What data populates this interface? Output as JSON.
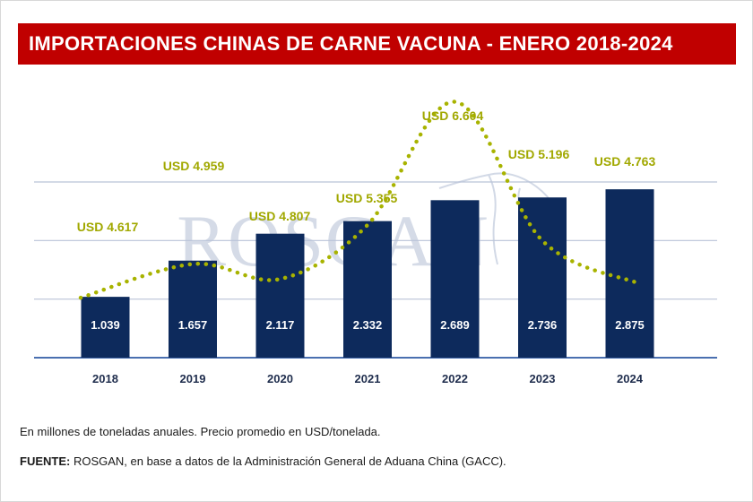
{
  "header": {
    "title": "IMPORTACIONES CHINAS DE CARNE VACUNA - ENERO 2018-2024"
  },
  "watermark": {
    "text": "ROSGAN"
  },
  "colors": {
    "bar": "#0d2a5c",
    "line": "#a8b300",
    "title_bg": "#c00000",
    "watermark": "#c8d0e0"
  },
  "chart_data": {
    "type": "bar",
    "title": "IMPORTACIONES CHINAS DE CARNE VACUNA - ENERO 2018-2024",
    "categories": [
      "2018",
      "2019",
      "2020",
      "2021",
      "2022",
      "2023",
      "2024"
    ],
    "series": [
      {
        "type": "bar",
        "values": [
          1.039,
          1.657,
          2.117,
          2.332,
          2.689,
          2.736,
          2.875
        ],
        "labels": [
          "1.039",
          "1.657",
          "2.117",
          "2.332",
          "2.689",
          "2.736",
          "2.875"
        ]
      },
      {
        "type": "line",
        "style": "dotted",
        "values": [
          4617,
          4959,
          4807,
          5355,
          6604,
          5196,
          4763
        ],
        "labels": [
          "USD 4.617",
          "USD 4.959",
          "USD 4.807",
          "USD 5.355",
          "USD 6.604",
          "USD 5.196",
          "USD 4.763"
        ]
      }
    ],
    "ylim": [
      0,
      3
    ],
    "grid": true,
    "legend": "none"
  },
  "footer": {
    "note": "En millones de toneladas anuales. Precio promedio en USD/tonelada.",
    "source_label": "FUENTE:",
    "source_text": " ROSGAN, en base a datos de la Administración General de Aduana China (GACC)."
  }
}
